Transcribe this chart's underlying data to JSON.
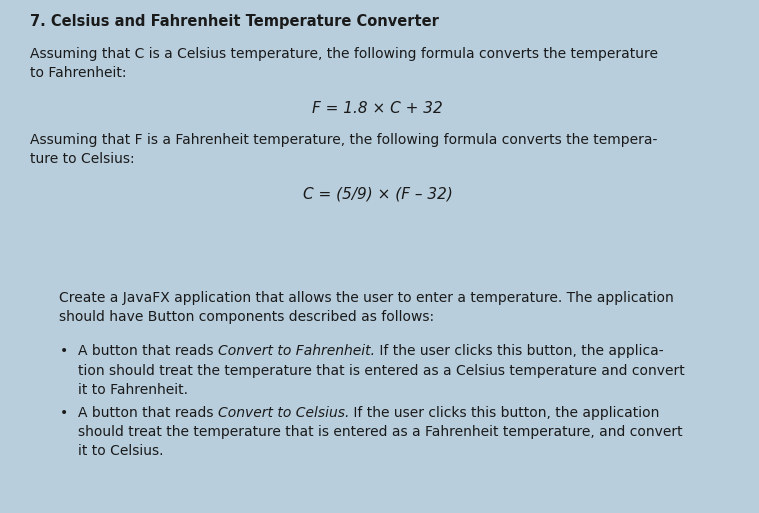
{
  "bg_color": "#cfe0ef",
  "box1_bg": "#cfe0ef",
  "box2_bg": "#cfe0ef",
  "outer_bg": "#b8cedd",
  "title": "7. Celsius and Fahrenheit Temperature Converter",
  "para1_line1": "Assuming that C is a Celsius temperature, the following formula converts the temperature",
  "para1_line2": "to Fahrenheit:",
  "formula1": "F = 1.8 × C + 32",
  "para2_line1": "Assuming that F is a Fahrenheit temperature, the following formula converts the tempera-",
  "para2_line2": "ture to Celsius:",
  "formula2": "C = (5/9) × (F – 32)",
  "para3_line1": "Create a JavaFX application that allows the user to enter a temperature. The application",
  "para3_line2": "should have Button components described as follows:",
  "b1_l1_pre": "A button that reads ",
  "b1_l1_italic": "Convert to Fahrenheit.",
  "b1_l1_post": " If the user clicks this button, the applica-",
  "b1_l2": "tion should treat the temperature that is entered as a Celsius temperature and convert",
  "b1_l3": "it to Fahrenheit.",
  "b2_l1_pre": "A button that reads ",
  "b2_l1_italic": "Convert to Celsius.",
  "b2_l1_post": " If the user clicks this button, the application",
  "b2_l2": "should treat the temperature that is entered as a Fahrenheit temperature, and convert",
  "b2_l3": "it to Celsius.",
  "text_color": "#1a1a1a",
  "fs_title": 10.5,
  "fs_body": 10,
  "fs_formula": 11
}
